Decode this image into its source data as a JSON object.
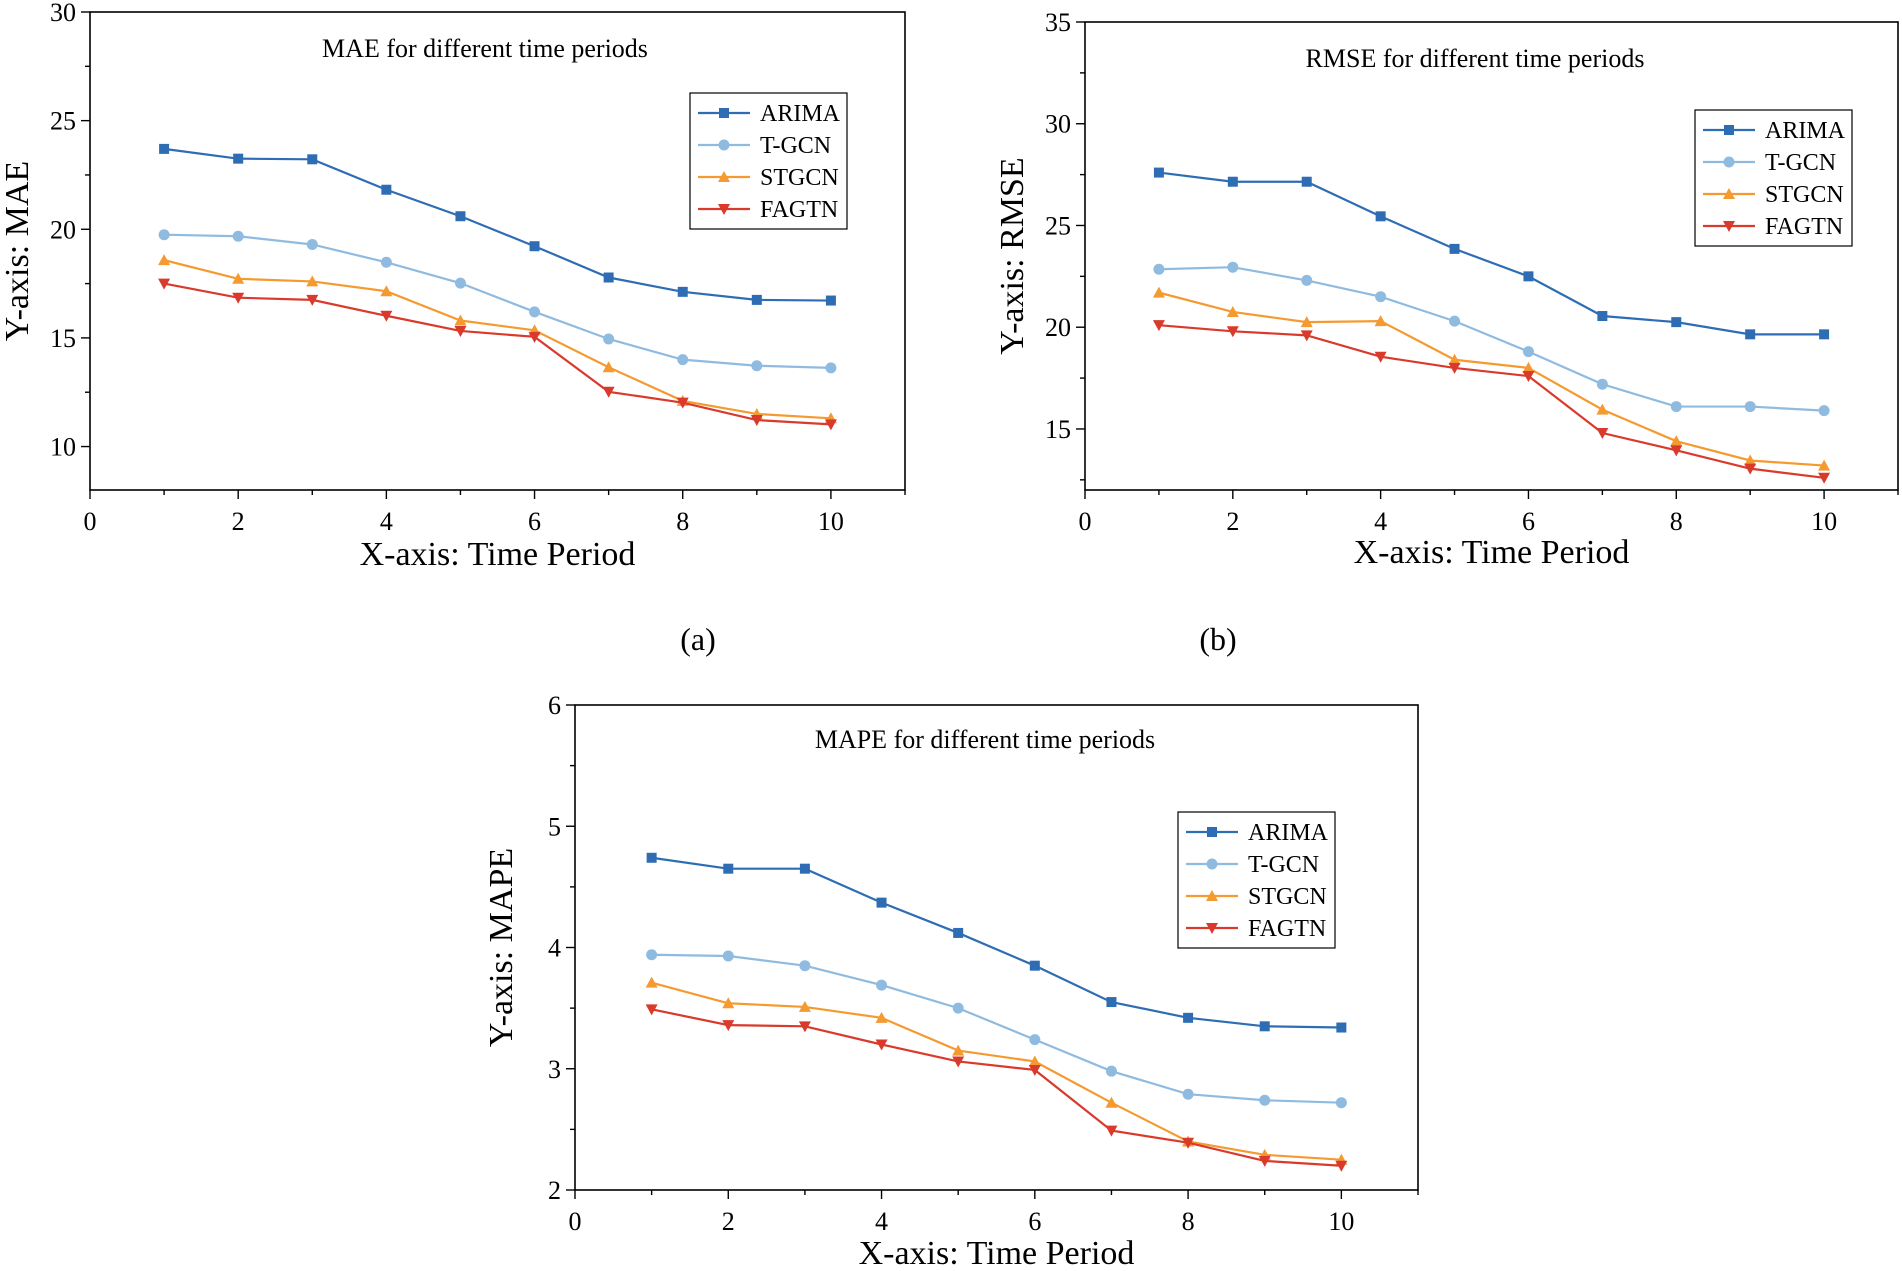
{
  "figure": {
    "captions": [
      "(a)",
      "(b)"
    ]
  },
  "chart_data": [
    {
      "type": "line",
      "title": "MAE for different time periods",
      "xlabel": "X-axis: Time Period",
      "ylabel": "Y-axis: MAE",
      "xlim": [
        0,
        11
      ],
      "ylim": [
        8,
        30
      ],
      "xticks": [
        0,
        2,
        4,
        6,
        8,
        10
      ],
      "yticks": [
        10,
        15,
        20,
        25,
        30
      ],
      "x": [
        1,
        2,
        3,
        4,
        5,
        6,
        7,
        8,
        9,
        10
      ],
      "series": [
        {
          "name": "ARIMA",
          "color": "#2e6db4",
          "marker": "square",
          "values": [
            23.7,
            23.25,
            23.22,
            21.82,
            20.6,
            19.22,
            17.78,
            17.12,
            16.75,
            16.72
          ]
        },
        {
          "name": "T-GCN",
          "color": "#8fbbe0",
          "marker": "circle",
          "values": [
            19.75,
            19.68,
            19.3,
            18.48,
            17.52,
            16.2,
            14.95,
            14.0,
            13.72,
            13.62
          ]
        },
        {
          "name": "STGCN",
          "color": "#f59a30",
          "marker": "triangle-up",
          "values": [
            18.58,
            17.72,
            17.6,
            17.15,
            15.8,
            15.35,
            13.65,
            12.1,
            11.5,
            11.3
          ]
        },
        {
          "name": "FAGTN",
          "color": "#d93a2b",
          "marker": "triangle-down",
          "values": [
            17.5,
            16.85,
            16.75,
            16.02,
            15.32,
            15.05,
            12.52,
            12.02,
            11.22,
            11.02
          ]
        }
      ],
      "legend": "top-right"
    },
    {
      "type": "line",
      "title": "RMSE for different time periods",
      "xlabel": "X-axis: Time Period",
      "ylabel": "Y-axis: RMSE",
      "xlim": [
        0,
        11
      ],
      "ylim": [
        12,
        35
      ],
      "xticks": [
        0,
        2,
        4,
        6,
        8,
        10
      ],
      "yticks": [
        15,
        20,
        25,
        30,
        35
      ],
      "x": [
        1,
        2,
        3,
        4,
        5,
        6,
        7,
        8,
        9,
        10
      ],
      "series": [
        {
          "name": "ARIMA",
          "color": "#2e6db4",
          "marker": "square",
          "values": [
            27.6,
            27.15,
            27.15,
            25.45,
            23.85,
            22.5,
            20.55,
            20.25,
            19.65,
            19.65
          ]
        },
        {
          "name": "T-GCN",
          "color": "#8fbbe0",
          "marker": "circle",
          "values": [
            22.85,
            22.95,
            22.3,
            21.5,
            20.3,
            18.8,
            17.2,
            16.1,
            16.1,
            15.9
          ]
        },
        {
          "name": "STGCN",
          "color": "#f59a30",
          "marker": "triangle-up",
          "values": [
            21.7,
            20.75,
            20.25,
            20.3,
            18.4,
            18.0,
            15.95,
            14.4,
            13.45,
            13.2
          ]
        },
        {
          "name": "FAGTN",
          "color": "#d93a2b",
          "marker": "triangle-down",
          "values": [
            20.1,
            19.8,
            19.6,
            18.55,
            18.0,
            17.6,
            14.8,
            13.95,
            13.05,
            12.6
          ]
        }
      ],
      "legend": "top-right"
    },
    {
      "type": "line",
      "title": "MAPE for different time periods",
      "xlabel": "X-axis: Time Period",
      "ylabel": "Y-axis: MAPE",
      "xlim": [
        0,
        11
      ],
      "ylim": [
        2,
        6
      ],
      "xticks": [
        0,
        2,
        4,
        6,
        8,
        10
      ],
      "yticks": [
        2,
        3,
        4,
        5,
        6
      ],
      "x": [
        1,
        2,
        3,
        4,
        5,
        6,
        7,
        8,
        9,
        10
      ],
      "series": [
        {
          "name": "ARIMA",
          "color": "#2e6db4",
          "marker": "square",
          "values": [
            4.74,
            4.65,
            4.65,
            4.37,
            4.12,
            3.85,
            3.55,
            3.42,
            3.35,
            3.34
          ]
        },
        {
          "name": "T-GCN",
          "color": "#8fbbe0",
          "marker": "circle",
          "values": [
            3.94,
            3.93,
            3.85,
            3.69,
            3.5,
            3.24,
            2.98,
            2.79,
            2.74,
            2.72
          ]
        },
        {
          "name": "STGCN",
          "color": "#f59a30",
          "marker": "triangle-up",
          "values": [
            3.71,
            3.54,
            3.51,
            3.42,
            3.15,
            3.06,
            2.72,
            2.4,
            2.29,
            2.25
          ]
        },
        {
          "name": "FAGTN",
          "color": "#d93a2b",
          "marker": "triangle-down",
          "values": [
            3.49,
            3.36,
            3.35,
            3.2,
            3.06,
            2.99,
            2.49,
            2.39,
            2.24,
            2.2
          ]
        }
      ],
      "legend": "top-right"
    }
  ]
}
